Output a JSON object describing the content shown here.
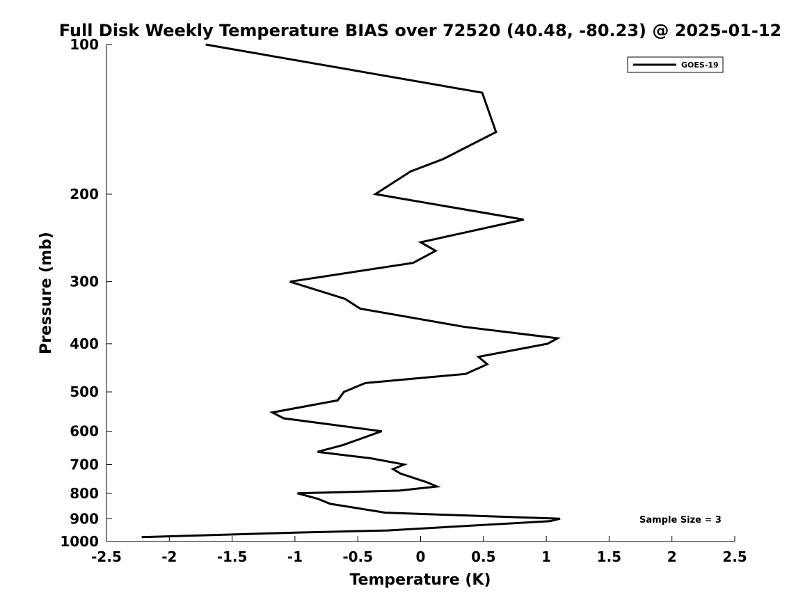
{
  "chart_data": {
    "type": "line",
    "title": "Full Disk Weekly Temperature BIAS over 72520 (40.48, -80.23) @ 2025-01-12",
    "xlabel": "Temperature (K)",
    "ylabel": "Pressure (mb)",
    "xlim": [
      -2.5,
      2.5
    ],
    "ylim": [
      100,
      1000
    ],
    "y_scale": "log",
    "y_reversed": true,
    "xticks": [
      -2.5,
      -2,
      -1.5,
      -1,
      -0.5,
      0,
      0.5,
      1,
      1.5,
      2,
      2.5
    ],
    "xtick_labels": [
      "-2.5",
      "-2",
      "-1.5",
      "-1",
      "-0.5",
      "0",
      "0.5",
      "1",
      "1.5",
      "2",
      "2.5"
    ],
    "yticks": [
      100,
      200,
      300,
      400,
      500,
      600,
      700,
      800,
      900,
      1000
    ],
    "ytick_labels": [
      "100",
      "200",
      "300",
      "400",
      "500",
      "600",
      "700",
      "800",
      "900",
      "1000"
    ],
    "grid": false,
    "legend_position": "top-right",
    "series": [
      {
        "name": "GOES-19",
        "color": "#000000",
        "points": [
          {
            "t": -1.71,
            "p": 100
          },
          {
            "t": 0.49,
            "p": 125
          },
          {
            "t": 0.6,
            "p": 150
          },
          {
            "t": 0.18,
            "p": 170
          },
          {
            "t": -0.08,
            "p": 180
          },
          {
            "t": -0.36,
            "p": 200
          },
          {
            "t": 0.82,
            "p": 225
          },
          {
            "t": 0.0,
            "p": 250
          },
          {
            "t": 0.12,
            "p": 260
          },
          {
            "t": -0.06,
            "p": 275
          },
          {
            "t": -1.04,
            "p": 300
          },
          {
            "t": -0.6,
            "p": 325
          },
          {
            "t": -0.48,
            "p": 340
          },
          {
            "t": 0.35,
            "p": 370
          },
          {
            "t": 1.09,
            "p": 390
          },
          {
            "t": 1.01,
            "p": 400
          },
          {
            "t": 0.46,
            "p": 425
          },
          {
            "t": 0.53,
            "p": 440
          },
          {
            "t": 0.36,
            "p": 460
          },
          {
            "t": -0.44,
            "p": 480
          },
          {
            "t": -0.61,
            "p": 500
          },
          {
            "t": -0.66,
            "p": 520
          },
          {
            "t": -1.18,
            "p": 550
          },
          {
            "t": -1.09,
            "p": 565
          },
          {
            "t": -0.31,
            "p": 600
          },
          {
            "t": -0.62,
            "p": 640
          },
          {
            "t": -0.82,
            "p": 660
          },
          {
            "t": -0.4,
            "p": 680
          },
          {
            "t": -0.13,
            "p": 700
          },
          {
            "t": -0.22,
            "p": 715
          },
          {
            "t": -0.16,
            "p": 730
          },
          {
            "t": 0.05,
            "p": 760
          },
          {
            "t": 0.13,
            "p": 775
          },
          {
            "t": -0.17,
            "p": 790
          },
          {
            "t": -0.98,
            "p": 800
          },
          {
            "t": -0.82,
            "p": 820
          },
          {
            "t": -0.72,
            "p": 840
          },
          {
            "t": -0.28,
            "p": 875
          },
          {
            "t": 1.11,
            "p": 900
          },
          {
            "t": 1.03,
            "p": 910
          },
          {
            "t": -0.26,
            "p": 950
          },
          {
            "t": -1.0,
            "p": 960
          },
          {
            "t": -2.22,
            "p": 980
          }
        ]
      }
    ],
    "annotations": [
      {
        "text": "Sample Size = 3",
        "position": "bottom-right"
      }
    ]
  }
}
